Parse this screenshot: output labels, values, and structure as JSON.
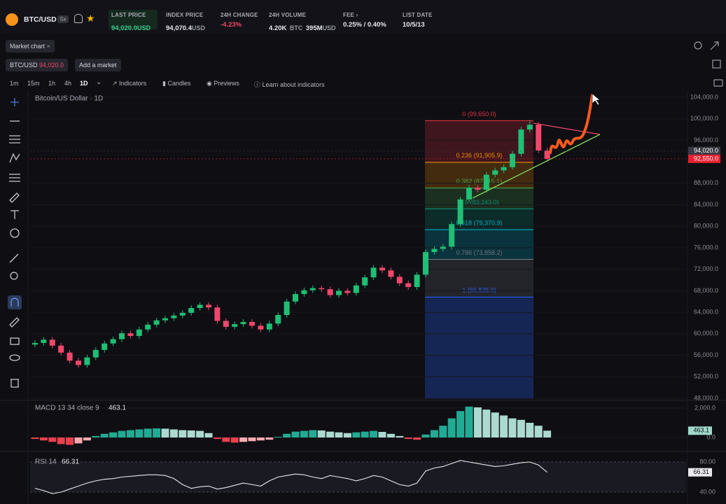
{
  "header": {
    "symbol": "BTC/USD",
    "leverage": "5x",
    "stats": [
      {
        "label": "LAST PRICE",
        "value": "94,020.0",
        "unit": "USD"
      },
      {
        "label": "INDEX PRICE",
        "value": "94,070.4",
        "unit": "USD"
      },
      {
        "label": "24H CHANGE",
        "value": "-4.23%"
      },
      {
        "label": "24H VOLUME",
        "value": "4.20K",
        "unit": "BTC",
        "value2": "395M",
        "unit2": "USD"
      },
      {
        "label": "FEE",
        "value": "0.25% / 0.40%"
      },
      {
        "label": "LIST DATE",
        "value": "10/5/13"
      }
    ]
  },
  "toolbar": {
    "tab": "Market chart",
    "market": "BTC/USD",
    "market_price": "94,020.0",
    "add_market": "Add a market",
    "timeframes": [
      "1m",
      "15m",
      "1h",
      "4h",
      "1D"
    ],
    "indicators": "Indicators",
    "candles": "Candles",
    "previews": "Previews",
    "learn": "Learn about indicators"
  },
  "chart_data": {
    "type": "candlestick",
    "title": "Bitcoin/US Dollar · 1D",
    "open": [
      58000,
      58300,
      58900,
      57800,
      56500,
      55000,
      54200,
      55600,
      57000,
      58200,
      59000,
      60100,
      59600,
      60800,
      61700,
      62500,
      62900,
      63400,
      63900,
      64800,
      65400,
      64900,
      62400,
      61300,
      61800,
      62200,
      61500,
      60800,
      61900,
      63500,
      66000,
      67400,
      68100,
      68500,
      68300,
      67200,
      68000,
      67600,
      69000,
      70500,
      72300,
      71800,
      70600,
      69400,
      68700,
      71000,
      75200,
      75800,
      76200,
      80400,
      85000,
      87200,
      86800,
      89600,
      90400,
      91000,
      93500,
      98000,
      98900,
      94100
    ],
    "high": [
      58800,
      59400,
      59400,
      58300,
      57000,
      55500,
      56100,
      57500,
      58700,
      59500,
      60600,
      60600,
      61300,
      62200,
      63000,
      63400,
      63900,
      64400,
      65300,
      65900,
      65900,
      65400,
      62900,
      62300,
      62700,
      62700,
      62000,
      62400,
      64000,
      66500,
      67900,
      68600,
      69000,
      69000,
      68800,
      68500,
      68500,
      69500,
      71000,
      72800,
      72800,
      72300,
      71100,
      69900,
      71500,
      75700,
      76300,
      76700,
      80900,
      85500,
      87700,
      87700,
      90100,
      90900,
      91500,
      94000,
      98500,
      99650,
      99400,
      94600
    ],
    "low": [
      57500,
      57800,
      57300,
      56000,
      54500,
      53700,
      53700,
      55100,
      56500,
      57700,
      58500,
      59100,
      59100,
      60300,
      61200,
      62000,
      62400,
      62900,
      63400,
      64300,
      64400,
      61900,
      60800,
      60800,
      61300,
      61000,
      60300,
      60300,
      61400,
      63000,
      65500,
      66900,
      67600,
      67800,
      66700,
      66700,
      67100,
      67100,
      68500,
      70000,
      71300,
      70100,
      68900,
      68200,
      68200,
      70500,
      74700,
      75300,
      75700,
      79900,
      84500,
      86300,
      86300,
      89100,
      89900,
      90500,
      93000,
      97500,
      93600,
      92050
    ],
    "close": [
      58300,
      58900,
      57800,
      56500,
      55000,
      54200,
      55600,
      57000,
      58200,
      59000,
      60100,
      59600,
      60800,
      61700,
      62500,
      62900,
      63400,
      63900,
      64800,
      65400,
      64900,
      62400,
      61300,
      61800,
      62200,
      61500,
      60800,
      61900,
      63500,
      66000,
      67400,
      68100,
      68500,
      68300,
      67200,
      68000,
      67600,
      69000,
      70500,
      72300,
      71800,
      70600,
      69400,
      68700,
      71000,
      75200,
      75800,
      76200,
      80400,
      85000,
      87200,
      86800,
      89600,
      90400,
      91000,
      93500,
      98000,
      98900,
      94100,
      92550
    ],
    "up_color": "#1fbf75",
    "down_color": "#f0476b",
    "ylim": [
      48000,
      104000
    ],
    "yticks": [
      {
        "value": 48000,
        "label": "48,000.0"
      },
      {
        "value": 52000,
        "label": "52,000.0"
      },
      {
        "value": 56000,
        "label": "56,000.0"
      },
      {
        "value": 60000,
        "label": "60,000.0"
      },
      {
        "value": 64000,
        "label": "64,000.0"
      },
      {
        "value": 68000,
        "label": "68,000.0"
      },
      {
        "value": 72000,
        "label": "72,000.0"
      },
      {
        "value": 76000,
        "label": "76,000.0"
      },
      {
        "value": 80000,
        "label": "80,000.0"
      },
      {
        "value": 84000,
        "label": "84,000.0"
      },
      {
        "value": 88000,
        "label": "88,000.0"
      },
      {
        "value": 96000,
        "label": "96,000.0"
      },
      {
        "value": 100000,
        "label": "100,000.0"
      },
      {
        "value": 104000,
        "label": "104,000.0"
      }
    ],
    "grid": true,
    "price_labels": [
      {
        "value": 94020,
        "label": "94,020.0",
        "color": "#3a3a44"
      },
      {
        "value": 92550,
        "label": "92,550.0",
        "color": "#e8202f"
      }
    ],
    "fib_levels": [
      {
        "value": 99650,
        "label": "0 (99,650.0)",
        "color": "#f23645"
      },
      {
        "value": 91905.9,
        "label": "0.236 (91,905.9)",
        "color": "#ff9800"
      },
      {
        "value": 87115.1,
        "label": "0.382 (87,115.1)",
        "color": "#4caf50"
      },
      {
        "value": 83243,
        "label": "0.5 (83,243.0)",
        "color": "#089981"
      },
      {
        "value": 79370.9,
        "label": "0.618 (79,370.9)",
        "color": "#00bcd4"
      },
      {
        "value": 73858.2,
        "label": "0.786 (73,858.2)",
        "color": "#787b86"
      },
      {
        "value": 66836,
        "label": "1 (66,836.0)",
        "color": "#2962ff"
      }
    ],
    "macd": {
      "title": "MACD 13 34 close 9",
      "values": [
        -100,
        -200,
        -300,
        -450,
        -500,
        -400,
        -200,
        100,
        250,
        350,
        450,
        500,
        550,
        600,
        620,
        600,
        550,
        500,
        480,
        450,
        300,
        -100,
        -300,
        -350,
        -300,
        -250,
        -200,
        -150,
        50,
        250,
        400,
        450,
        500,
        480,
        400,
        350,
        300,
        350,
        400,
        450,
        380,
        250,
        100,
        -100,
        -150,
        200,
        500,
        800,
        1300,
        1800,
        2100,
        2050,
        1900,
        1700,
        1500,
        1300,
        1200,
        1000,
        800,
        463.1
      ],
      "ylim": [
        -800,
        2400
      ],
      "yticks": [
        {
          "value": 2000,
          "label": "2,000.0"
        },
        {
          "value": 0,
          "label": "0.0"
        }
      ]
    },
    "rsi": {
      "title": "RSI 14",
      "values": [
        45,
        42,
        38,
        40,
        44,
        48,
        52,
        55,
        57,
        58,
        60,
        61,
        62,
        63,
        63,
        62,
        58,
        50,
        45,
        47,
        48,
        44,
        46,
        49,
        52,
        50,
        48,
        55,
        60,
        62,
        64,
        63,
        60,
        58,
        62,
        60,
        58,
        55,
        58,
        62,
        60,
        55,
        50,
        48,
        52,
        68,
        72,
        74,
        78,
        82,
        80,
        78,
        76,
        74,
        75,
        77,
        79,
        80,
        76,
        66.31
      ],
      "color": "#e8e8ee",
      "ylim": [
        30,
        90
      ],
      "yticks": [
        {
          "value": 80,
          "label": "80.00"
        },
        {
          "value": 40,
          "label": "40.00"
        }
      ]
    }
  }
}
